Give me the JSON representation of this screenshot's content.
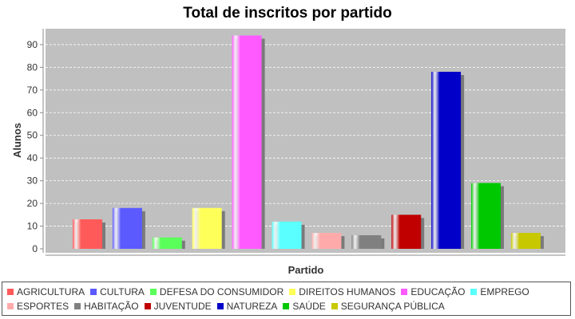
{
  "chart_data": {
    "type": "bar",
    "title": "Total de inscritos por partido",
    "xlabel": "Partido",
    "ylabel": "Alunos",
    "ylim": [
      0,
      97
    ],
    "yticks": [
      0,
      10,
      20,
      30,
      40,
      50,
      60,
      70,
      80,
      90
    ],
    "grid": true,
    "legend_position": "bottom",
    "series": [
      {
        "name": "AGRICULTURA",
        "value": 13,
        "color": "#ff5a5a"
      },
      {
        "name": "CULTURA",
        "value": 18,
        "color": "#5a5aff"
      },
      {
        "name": "DEFESA DO CONSUMIDOR",
        "value": 5,
        "color": "#5aff5a"
      },
      {
        "name": "DIREITOS HUMANOS",
        "value": 18,
        "color": "#ffff5a"
      },
      {
        "name": "EDUCAÇÃO",
        "value": 94,
        "color": "#ff5aff"
      },
      {
        "name": "EMPREGO",
        "value": 12,
        "color": "#5affff"
      },
      {
        "name": "ESPORTES",
        "value": 7,
        "color": "#ffaaaa"
      },
      {
        "name": "HABITAÇÃO",
        "value": 6,
        "color": "#808080"
      },
      {
        "name": "JUVENTUDE",
        "value": 15,
        "color": "#c00000"
      },
      {
        "name": "NATUREZA",
        "value": 78,
        "color": "#0000c8"
      },
      {
        "name": "SAÚDE",
        "value": 29,
        "color": "#00c800"
      },
      {
        "name": "SEGURANÇA PÚBLICA",
        "value": 7,
        "color": "#c8c800"
      }
    ]
  }
}
